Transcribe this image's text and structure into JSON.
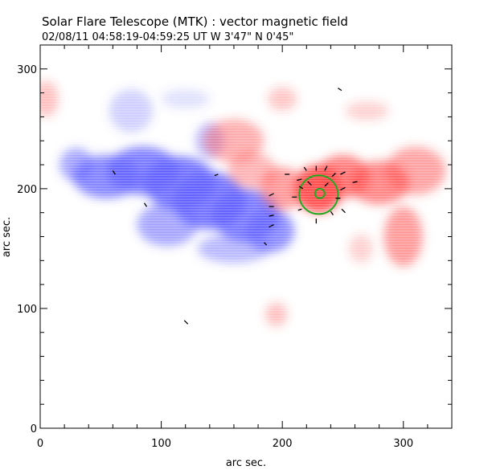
{
  "chart_data": {
    "type": "heatmap",
    "title": "Solar Flare Telescope (MTK) : vector magnetic field",
    "subtitle": "02/08/11   04:58:19-04:59:25 UT     W 3'47\"   N 0'45\"",
    "xlabel": "arc sec.",
    "ylabel": "arc sec.",
    "xlim": [
      0,
      340
    ],
    "ylim": [
      0,
      320
    ],
    "xticks": [
      0,
      100,
      200,
      300
    ],
    "yticks": [
      0,
      100,
      200,
      300
    ],
    "grid": false,
    "colors": {
      "negative_polarity": "#4d4dff",
      "positive_polarity": "#ff3333",
      "circle": "#22aa22",
      "vectors": "#000000",
      "axes": "#000000"
    },
    "blue_regions": [
      {
        "x": 30,
        "y": 220,
        "rx": 14,
        "ry": 14,
        "o": 0.55
      },
      {
        "x": 55,
        "y": 210,
        "rx": 28,
        "ry": 18,
        "o": 0.75
      },
      {
        "x": 85,
        "y": 215,
        "rx": 30,
        "ry": 20,
        "o": 0.8
      },
      {
        "x": 115,
        "y": 205,
        "rx": 30,
        "ry": 22,
        "o": 0.85
      },
      {
        "x": 140,
        "y": 190,
        "rx": 30,
        "ry": 24,
        "o": 0.85
      },
      {
        "x": 170,
        "y": 178,
        "rx": 28,
        "ry": 22,
        "o": 0.8
      },
      {
        "x": 190,
        "y": 165,
        "rx": 20,
        "ry": 18,
        "o": 0.7
      },
      {
        "x": 105,
        "y": 170,
        "rx": 25,
        "ry": 18,
        "o": 0.55
      },
      {
        "x": 160,
        "y": 150,
        "rx": 30,
        "ry": 12,
        "o": 0.45
      },
      {
        "x": 75,
        "y": 265,
        "rx": 18,
        "ry": 18,
        "o": 0.3
      },
      {
        "x": 140,
        "y": 240,
        "rx": 12,
        "ry": 15,
        "o": 0.4
      },
      {
        "x": 120,
        "y": 275,
        "rx": 20,
        "ry": 8,
        "o": 0.2
      }
    ],
    "red_regions": [
      {
        "x": 160,
        "y": 240,
        "rx": 25,
        "ry": 18,
        "o": 0.45
      },
      {
        "x": 175,
        "y": 215,
        "rx": 20,
        "ry": 15,
        "o": 0.4
      },
      {
        "x": 200,
        "y": 200,
        "rx": 18,
        "ry": 18,
        "o": 0.55
      },
      {
        "x": 230,
        "y": 200,
        "rx": 20,
        "ry": 20,
        "o": 0.95
      },
      {
        "x": 250,
        "y": 210,
        "rx": 22,
        "ry": 18,
        "o": 0.7
      },
      {
        "x": 280,
        "y": 205,
        "rx": 25,
        "ry": 18,
        "o": 0.65
      },
      {
        "x": 310,
        "y": 215,
        "rx": 25,
        "ry": 20,
        "o": 0.5
      },
      {
        "x": 300,
        "y": 160,
        "rx": 16,
        "ry": 25,
        "o": 0.55
      },
      {
        "x": 200,
        "y": 275,
        "rx": 12,
        "ry": 10,
        "o": 0.3
      },
      {
        "x": 270,
        "y": 265,
        "rx": 18,
        "ry": 8,
        "o": 0.25
      },
      {
        "x": 5,
        "y": 275,
        "rx": 10,
        "ry": 15,
        "o": 0.35
      },
      {
        "x": 195,
        "y": 95,
        "rx": 9,
        "ry": 10,
        "o": 0.35
      },
      {
        "x": 265,
        "y": 150,
        "rx": 10,
        "ry": 12,
        "o": 0.25
      }
    ],
    "circle": {
      "x": 230,
      "y": 195,
      "r": 16
    },
    "inner_circle": {
      "x": 231,
      "y": 196,
      "r": 4
    },
    "vectors": [
      {
        "x": 60,
        "y": 215,
        "dx": 2,
        "dy": -3
      },
      {
        "x": 86,
        "y": 188,
        "dx": 2,
        "dy": -3
      },
      {
        "x": 147,
        "y": 212,
        "dx": -3,
        "dy": -1
      },
      {
        "x": 119,
        "y": 90,
        "dx": 3,
        "dy": -3
      },
      {
        "x": 185,
        "y": 155,
        "dx": 2,
        "dy": -2
      },
      {
        "x": 193,
        "y": 196,
        "dx": -4,
        "dy": -2
      },
      {
        "x": 193,
        "y": 185,
        "dx": -4,
        "dy": 0
      },
      {
        "x": 193,
        "y": 178,
        "dx": -4,
        "dy": -1
      },
      {
        "x": 193,
        "y": 170,
        "dx": -4,
        "dy": -2
      },
      {
        "x": 206,
        "y": 212,
        "dx": -4,
        "dy": 0
      },
      {
        "x": 216,
        "y": 208,
        "dx": -4,
        "dy": -1
      },
      {
        "x": 228,
        "y": 215,
        "dx": 0,
        "dy": 4
      },
      {
        "x": 235,
        "y": 215,
        "dx": 2,
        "dy": 4
      },
      {
        "x": 220,
        "y": 215,
        "dx": -2,
        "dy": 3
      },
      {
        "x": 241,
        "y": 210,
        "dx": 3,
        "dy": 3
      },
      {
        "x": 248,
        "y": 212,
        "dx": 4,
        "dy": 2
      },
      {
        "x": 258,
        "y": 205,
        "dx": 4,
        "dy": 1
      },
      {
        "x": 217,
        "y": 200,
        "dx": -3,
        "dy": 2
      },
      {
        "x": 212,
        "y": 193,
        "dx": -4,
        "dy": 0
      },
      {
        "x": 216,
        "y": 183,
        "dx": -3,
        "dy": -1
      },
      {
        "x": 228,
        "y": 175,
        "dx": 0,
        "dy": -4
      },
      {
        "x": 240,
        "y": 181,
        "dx": 2,
        "dy": -3
      },
      {
        "x": 244,
        "y": 192,
        "dx": 4,
        "dy": 0
      },
      {
        "x": 249,
        "y": 183,
        "dx": 3,
        "dy": -3
      },
      {
        "x": 248,
        "y": 199,
        "dx": 4,
        "dy": 2
      },
      {
        "x": 235,
        "y": 202,
        "dx": 3,
        "dy": 3
      },
      {
        "x": 224,
        "y": 203,
        "dx": -3,
        "dy": 3
      },
      {
        "x": 249,
        "y": 282,
        "dx": -3,
        "dy": 2
      }
    ]
  }
}
